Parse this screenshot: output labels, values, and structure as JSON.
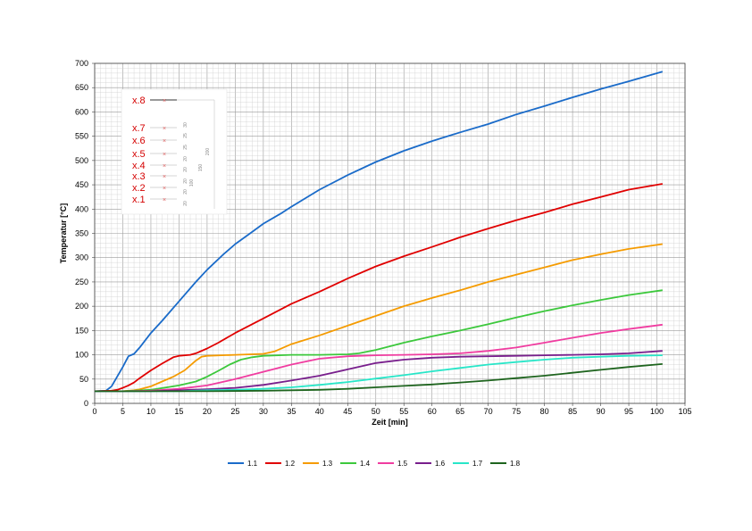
{
  "chart_data": {
    "type": "line",
    "xlabel": "Zeit [min]",
    "ylabel": "Temperatur [°C]",
    "xlim": [
      0,
      105
    ],
    "ylim": [
      0,
      700
    ],
    "xticks": [
      0,
      5,
      10,
      15,
      20,
      25,
      30,
      35,
      40,
      45,
      50,
      55,
      60,
      65,
      70,
      75,
      80,
      85,
      90,
      95,
      100,
      105
    ],
    "yticks": [
      0,
      50,
      100,
      150,
      200,
      250,
      300,
      350,
      400,
      450,
      500,
      550,
      600,
      650,
      700
    ],
    "grid": true,
    "legend_position": "bottom",
    "series": [
      {
        "name": "1.1",
        "color": "#1a6bc9",
        "x": [
          0,
          2,
          3,
          4,
          5,
          6,
          7,
          8,
          10,
          12,
          15,
          18,
          20,
          23,
          25,
          28,
          30,
          33,
          35,
          40,
          45,
          50,
          55,
          60,
          65,
          70,
          75,
          80,
          85,
          90,
          95,
          101
        ],
        "y": [
          25,
          26,
          35,
          55,
          75,
          97,
          102,
          115,
          145,
          170,
          210,
          250,
          275,
          308,
          328,
          353,
          370,
          390,
          405,
          440,
          470,
          497,
          520,
          540,
          558,
          575,
          595,
          612,
          630,
          647,
          663,
          683
        ]
      },
      {
        "name": "1.2",
        "color": "#e00000",
        "x": [
          0,
          3,
          4,
          5,
          6,
          7,
          8,
          10,
          12,
          14,
          15,
          17,
          18,
          20,
          22,
          25,
          30,
          35,
          40,
          45,
          50,
          55,
          60,
          65,
          70,
          75,
          80,
          85,
          90,
          95,
          101
        ],
        "y": [
          25,
          26,
          28,
          32,
          37,
          43,
          52,
          68,
          82,
          95,
          98,
          100,
          103,
          113,
          125,
          145,
          175,
          205,
          230,
          257,
          282,
          303,
          322,
          342,
          360,
          377,
          393,
          410,
          425,
          440,
          452
        ]
      },
      {
        "name": "1.3",
        "color": "#f59b00",
        "x": [
          0,
          5,
          7,
          8,
          10,
          12,
          14,
          16,
          18,
          19,
          20,
          25,
          30,
          32,
          35,
          40,
          45,
          50,
          55,
          60,
          65,
          70,
          75,
          80,
          85,
          90,
          95,
          101
        ],
        "y": [
          25,
          25,
          27,
          29,
          35,
          45,
          55,
          68,
          88,
          96,
          98,
          100,
          102,
          107,
          122,
          140,
          160,
          180,
          200,
          217,
          233,
          250,
          265,
          280,
          295,
          307,
          318,
          328
        ]
      },
      {
        "name": "1.4",
        "color": "#3cc83c",
        "x": [
          0,
          5,
          10,
          15,
          18,
          20,
          22,
          24,
          26,
          28,
          30,
          35,
          40,
          45,
          47,
          50,
          55,
          60,
          65,
          70,
          75,
          80,
          85,
          90,
          95,
          101
        ],
        "y": [
          25,
          25,
          28,
          37,
          45,
          55,
          67,
          80,
          90,
          95,
          98,
          100,
          100,
          101,
          103,
          110,
          125,
          138,
          150,
          163,
          177,
          190,
          202,
          213,
          223,
          233
        ]
      },
      {
        "name": "1.5",
        "color": "#f03ca0",
        "x": [
          0,
          5,
          10,
          15,
          20,
          25,
          30,
          35,
          40,
          45,
          50,
          55,
          60,
          65,
          70,
          75,
          80,
          85,
          90,
          95,
          101
        ],
        "y": [
          25,
          25,
          26,
          30,
          37,
          50,
          65,
          80,
          92,
          97,
          99,
          100,
          101,
          103,
          108,
          115,
          125,
          135,
          145,
          153,
          162
        ]
      },
      {
        "name": "1.6",
        "color": "#781e8c",
        "x": [
          0,
          10,
          15,
          20,
          25,
          30,
          35,
          40,
          45,
          50,
          55,
          60,
          65,
          70,
          75,
          80,
          85,
          90,
          95,
          101
        ],
        "y": [
          25,
          25,
          27,
          29,
          32,
          38,
          47,
          57,
          70,
          83,
          90,
          94,
          96,
          97,
          98,
          99,
          100,
          101,
          103,
          108
        ]
      },
      {
        "name": "1.7",
        "color": "#28e6c8",
        "x": [
          0,
          15,
          20,
          25,
          30,
          35,
          40,
          45,
          50,
          55,
          60,
          65,
          70,
          75,
          80,
          85,
          90,
          95,
          101
        ],
        "y": [
          25,
          25,
          27,
          28,
          30,
          33,
          38,
          44,
          51,
          58,
          66,
          73,
          80,
          85,
          90,
          94,
          96,
          98,
          99
        ]
      },
      {
        "name": "1.8",
        "color": "#1e641e",
        "x": [
          0,
          20,
          30,
          40,
          45,
          50,
          55,
          60,
          65,
          70,
          75,
          80,
          85,
          90,
          95,
          101
        ],
        "y": [
          25,
          25,
          26,
          28,
          30,
          33,
          36,
          39,
          43,
          47,
          52,
          57,
          63,
          69,
          75,
          81
        ]
      }
    ]
  },
  "inset": {
    "labels": [
      "x.8",
      "x.7",
      "x.6",
      "x.5",
      "x.4",
      "x.3",
      "x.2",
      "x.1"
    ],
    "dims": [
      "20",
      "20",
      "20",
      "20",
      "20",
      "25",
      "25",
      "30",
      "100",
      "150",
      "200"
    ]
  }
}
